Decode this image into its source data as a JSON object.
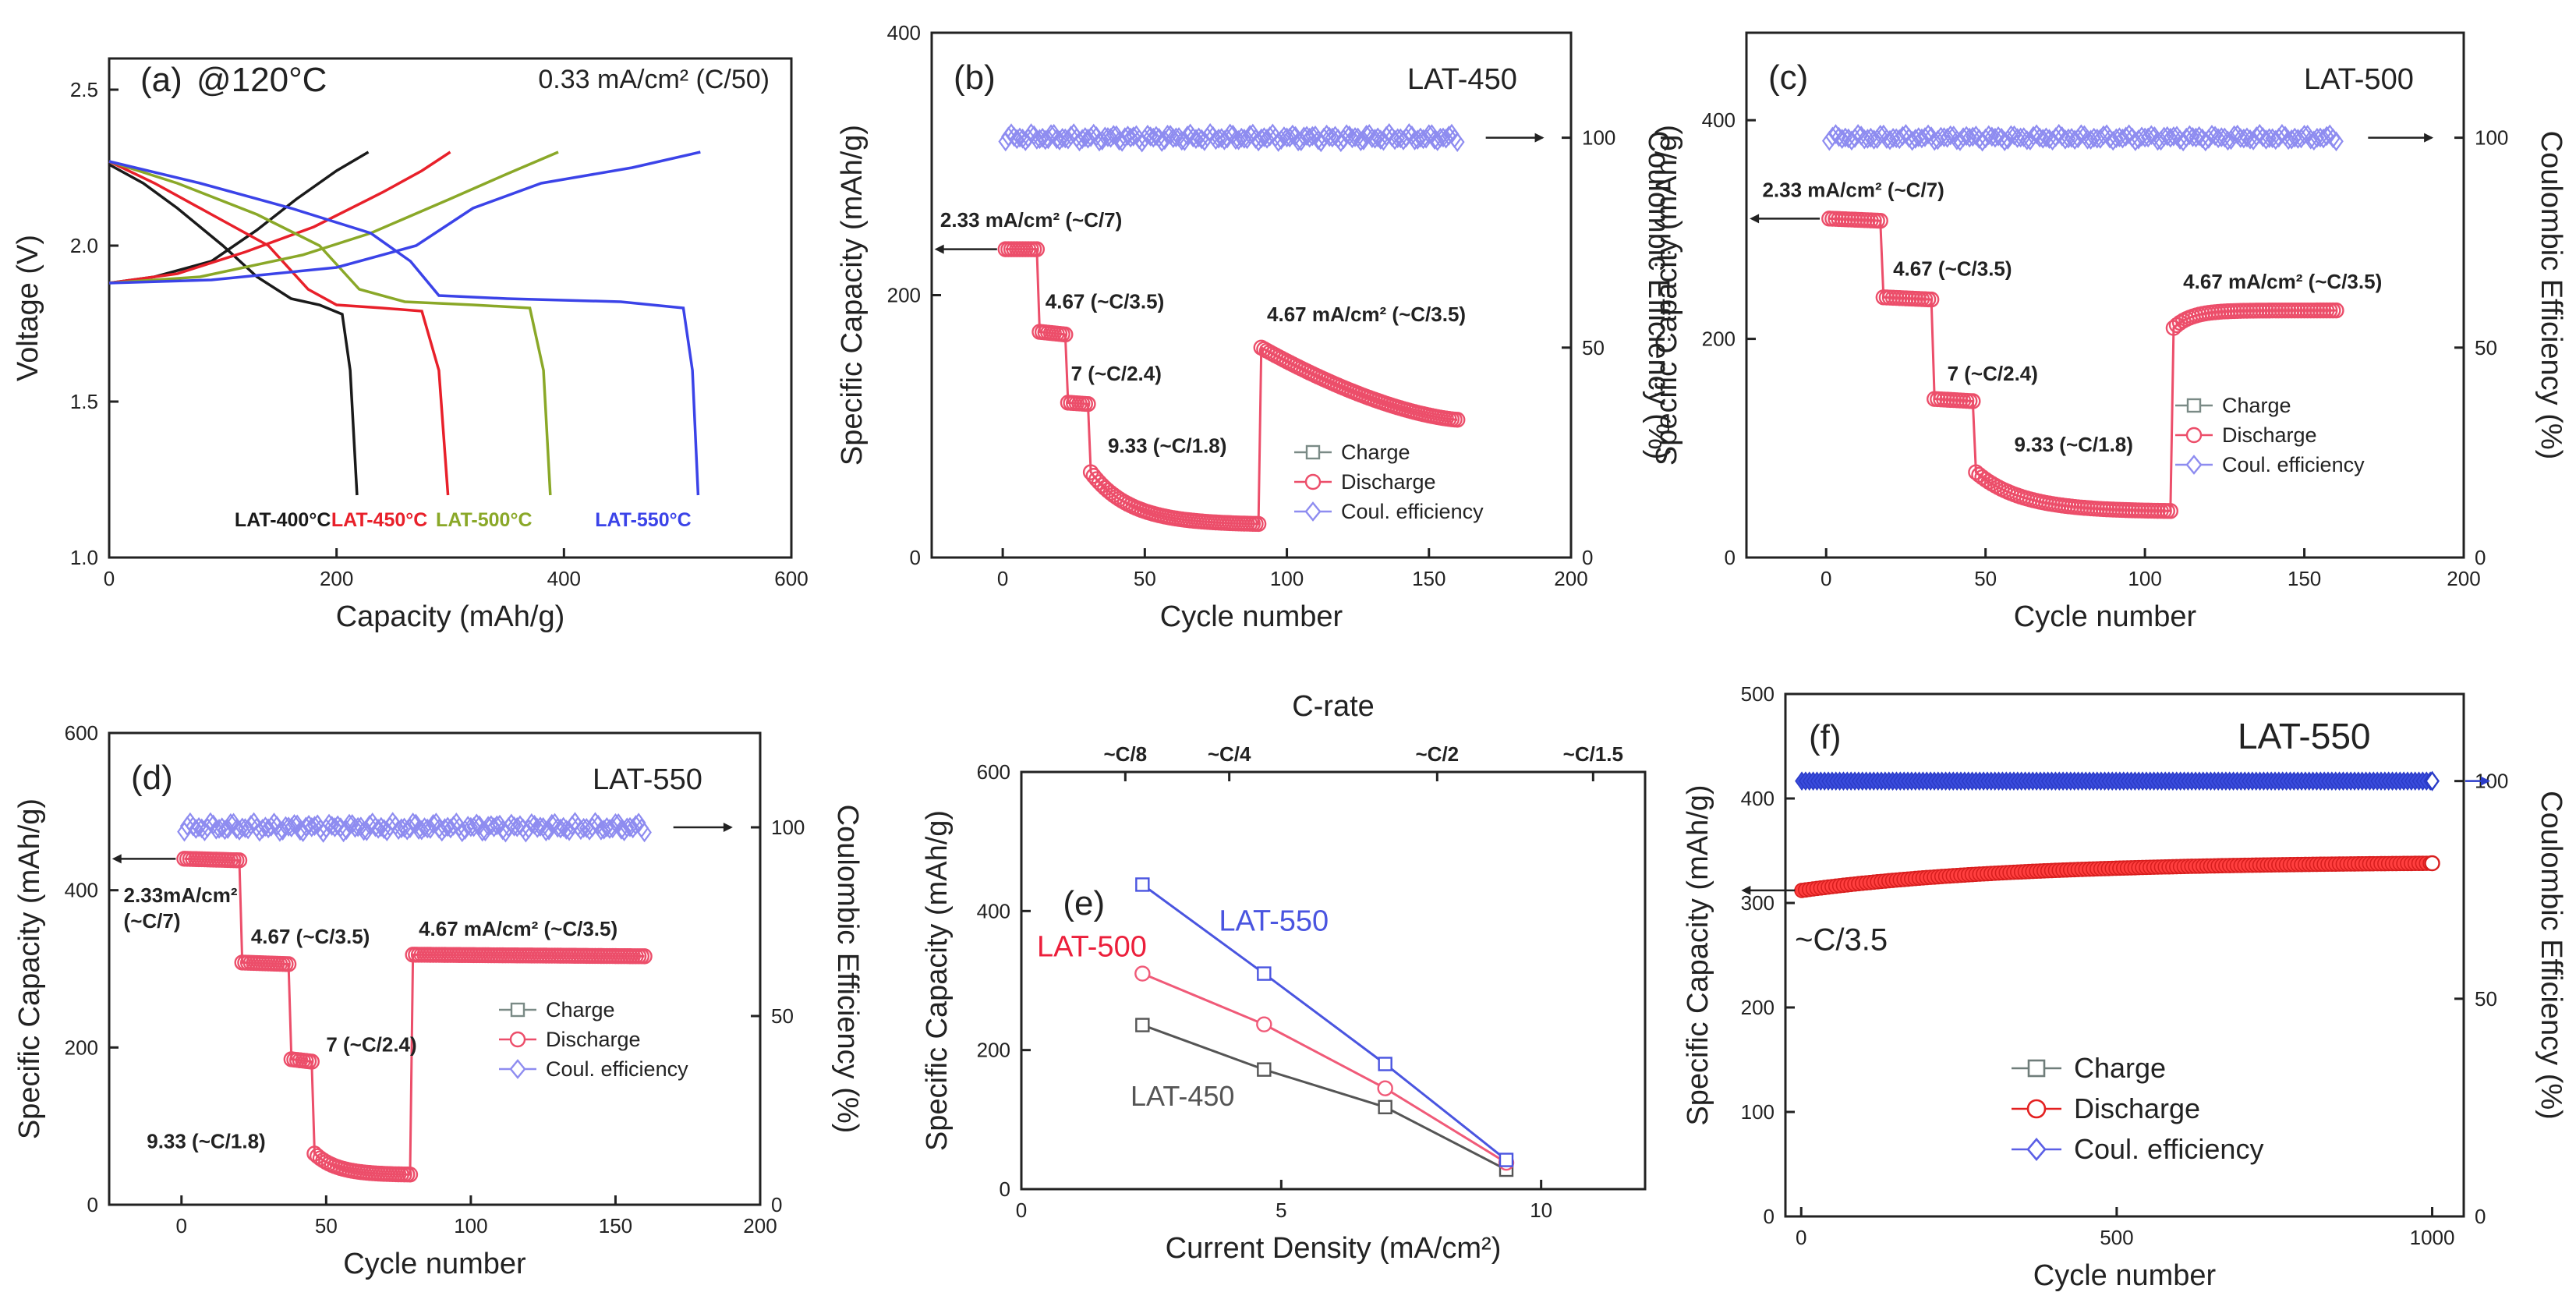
{
  "chart_data": [
    {
      "id": "a",
      "type": "line",
      "panel_label": "(a)",
      "title": "@120°C",
      "subtitle": "0.33 mA/cm² (C/50)",
      "xlabel": "Capacity (mAh/g)",
      "ylabel": "Voltage (V)",
      "xlim": [
        0,
        600
      ],
      "ylim": [
        1.0,
        2.6
      ],
      "xticks": [
        0,
        200,
        400,
        600
      ],
      "yticks": [
        1.0,
        1.5,
        2.0,
        2.5
      ],
      "series": [
        {
          "name": "LAT-400°C",
          "color": "#1a1a1a",
          "discharge": [
            [
              0,
              2.26
            ],
            [
              30,
              2.2
            ],
            [
              60,
              2.12
            ],
            [
              100,
              2.0
            ],
            [
              130,
              1.9
            ],
            [
              160,
              1.83
            ],
            [
              185,
              1.81
            ],
            [
              205,
              1.78
            ],
            [
              212,
              1.6
            ],
            [
              218,
              1.2
            ]
          ],
          "charge": [
            [
              0,
              1.88
            ],
            [
              40,
              1.9
            ],
            [
              90,
              1.95
            ],
            [
              130,
              2.05
            ],
            [
              165,
              2.15
            ],
            [
              200,
              2.24
            ],
            [
              228,
              2.3
            ]
          ]
        },
        {
          "name": "LAT-450°C",
          "color": "#e8202a",
          "discharge": [
            [
              0,
              2.27
            ],
            [
              40,
              2.2
            ],
            [
              90,
              2.1
            ],
            [
              140,
              2.0
            ],
            [
              175,
              1.86
            ],
            [
              200,
              1.81
            ],
            [
              240,
              1.8
            ],
            [
              275,
              1.79
            ],
            [
              290,
              1.6
            ],
            [
              298,
              1.2
            ]
          ],
          "charge": [
            [
              0,
              1.88
            ],
            [
              60,
              1.91
            ],
            [
              120,
              1.98
            ],
            [
              180,
              2.06
            ],
            [
              240,
              2.17
            ],
            [
              275,
              2.24
            ],
            [
              300,
              2.3
            ]
          ]
        },
        {
          "name": "LAT-500°C",
          "color": "#8aa828",
          "discharge": [
            [
              0,
              2.27
            ],
            [
              60,
              2.2
            ],
            [
              130,
              2.1
            ],
            [
              185,
              2.0
            ],
            [
              220,
              1.86
            ],
            [
              260,
              1.82
            ],
            [
              320,
              1.81
            ],
            [
              370,
              1.8
            ],
            [
              382,
              1.6
            ],
            [
              388,
              1.2
            ]
          ],
          "charge": [
            [
              0,
              1.88
            ],
            [
              80,
              1.9
            ],
            [
              170,
              1.97
            ],
            [
              230,
              2.04
            ],
            [
              300,
              2.15
            ],
            [
              350,
              2.23
            ],
            [
              395,
              2.3
            ]
          ]
        },
        {
          "name": "LAT-550°C",
          "color": "#3b43e8",
          "discharge": [
            [
              0,
              2.27
            ],
            [
              80,
              2.2
            ],
            [
              160,
              2.12
            ],
            [
              230,
              2.04
            ],
            [
              265,
              1.95
            ],
            [
              290,
              1.84
            ],
            [
              350,
              1.83
            ],
            [
              450,
              1.82
            ],
            [
              505,
              1.8
            ],
            [
              513,
              1.6
            ],
            [
              518,
              1.2
            ]
          ],
          "charge": [
            [
              0,
              1.88
            ],
            [
              90,
              1.89
            ],
            [
              200,
              1.93
            ],
            [
              270,
              2.0
            ],
            [
              320,
              2.12
            ],
            [
              380,
              2.2
            ],
            [
              460,
              2.25
            ],
            [
              520,
              2.3
            ]
          ]
        }
      ]
    },
    {
      "id": "b",
      "type": "scatter",
      "panel_label": "(b)",
      "title": "LAT-450",
      "xlabel": "Cycle number",
      "ylabel": "Specific Capacity (mAh/g)",
      "y2label": "Coulombic Efficiency (%)",
      "xlim": [
        -25,
        200
      ],
      "ylim": [
        0,
        400
      ],
      "y2lim": [
        0,
        125
      ],
      "xticks": [
        0,
        50,
        100,
        150,
        200
      ],
      "yticks": [
        0,
        200,
        400
      ],
      "y2ticks": [
        0,
        50,
        100
      ],
      "segments": [
        {
          "from": 1,
          "to": 12,
          "start": 235,
          "end": 235
        },
        {
          "from": 13,
          "to": 22,
          "start": 172,
          "end": 170
        },
        {
          "from": 23,
          "to": 30,
          "start": 118,
          "end": 117
        },
        {
          "from": 31,
          "to": 90,
          "start": 65,
          "end": 25,
          "decay": true
        },
        {
          "from": 91,
          "to": 160,
          "start": 160,
          "end": 105,
          "gradual": true
        }
      ],
      "ce_value": 100,
      "annotations": [
        "2.33 mA/cm² (~C/7)",
        "4.67 (~C/3.5)",
        "7 (~C/2.4)",
        "9.33 (~C/1.8)",
        "4.67 mA/cm² (~C/3.5)"
      ],
      "legend": [
        "Charge",
        "Discharge",
        "Coul. efficiency"
      ]
    },
    {
      "id": "c",
      "type": "scatter",
      "panel_label": "(c)",
      "title": "LAT-500",
      "xlabel": "Cycle number",
      "ylabel": "Specific Capacity (mAh/g)",
      "y2label": "Coulombic Efficiency (%)",
      "xlim": [
        -25,
        200
      ],
      "ylim": [
        0,
        480
      ],
      "y2lim": [
        0,
        125
      ],
      "xticks": [
        0,
        50,
        100,
        150,
        200
      ],
      "yticks": [
        0,
        200,
        400
      ],
      "y2ticks": [
        0,
        50,
        100
      ],
      "segments": [
        {
          "from": 1,
          "to": 17,
          "start": 310,
          "end": 308
        },
        {
          "from": 18,
          "to": 33,
          "start": 238,
          "end": 236
        },
        {
          "from": 34,
          "to": 46,
          "start": 145,
          "end": 143
        },
        {
          "from": 47,
          "to": 108,
          "start": 78,
          "end": 42,
          "decay": true
        },
        {
          "from": 109,
          "to": 160,
          "start": 210,
          "end": 226,
          "rise": true
        }
      ],
      "ce_value": 100,
      "annotations": [
        "2.33 mA/cm² (~C/7)",
        "4.67 (~C/3.5)",
        "7 (~C/2.4)",
        "9.33 (~C/1.8)",
        "4.67 mA/cm² (~C/3.5)"
      ],
      "legend": [
        "Charge",
        "Discharge",
        "Coul. efficiency"
      ]
    },
    {
      "id": "d",
      "type": "scatter",
      "panel_label": "(d)",
      "title": "LAT-550",
      "xlabel": "Cycle number",
      "ylabel": "Specific Capacity (mAh/g)",
      "y2label": "Coulombic Efficiency (%)",
      "xlim": [
        -25,
        200
      ],
      "ylim": [
        0,
        600
      ],
      "y2lim": [
        0,
        125
      ],
      "xticks": [
        0,
        50,
        100,
        150,
        200
      ],
      "yticks": [
        0,
        200,
        400,
        600
      ],
      "y2ticks": [
        0,
        50,
        100
      ],
      "segments": [
        {
          "from": 1,
          "to": 20,
          "start": 440,
          "end": 438
        },
        {
          "from": 21,
          "to": 37,
          "start": 308,
          "end": 306
        },
        {
          "from": 38,
          "to": 45,
          "start": 185,
          "end": 182
        },
        {
          "from": 46,
          "to": 79,
          "start": 65,
          "end": 38,
          "decay": true
        },
        {
          "from": 80,
          "to": 160,
          "start": 318,
          "end": 316
        }
      ],
      "ce_value": 100,
      "annotations": [
        "2.33mA/cm²",
        "(~C/7)",
        "4.67 (~C/3.5)",
        "7 (~C/2.4)",
        "9.33 (~C/1.8)",
        "4.67 mA/cm² (~C/3.5)"
      ],
      "legend": [
        "Charge",
        "Discharge",
        "Coul. efficiency"
      ]
    },
    {
      "id": "e",
      "type": "line",
      "panel_label": "(e)",
      "title": "C-rate",
      "xlabel": "Current Density (mA/cm²)",
      "ylabel": "Specific Capacity (mAh/g)",
      "xlim": [
        0,
        12
      ],
      "ylim": [
        0,
        600
      ],
      "xticks": [
        0,
        5,
        10
      ],
      "yticks": [
        0,
        200,
        400,
        600
      ],
      "top_ticks": [
        {
          "x": 2.0,
          "label": "~C/8"
        },
        {
          "x": 4.0,
          "label": "~C/4"
        },
        {
          "x": 8.0,
          "label": "~C/2"
        },
        {
          "x": 11.0,
          "label": "~C/1.5"
        }
      ],
      "series": [
        {
          "name": "LAT-450",
          "color": "#555555",
          "x": [
            2.33,
            4.67,
            7,
            9.33
          ],
          "y": [
            236,
            172,
            118,
            28
          ]
        },
        {
          "name": "LAT-500",
          "color": "#f05a78",
          "x": [
            2.33,
            4.67,
            7,
            9.33
          ],
          "y": [
            310,
            237,
            145,
            38
          ]
        },
        {
          "name": "LAT-550",
          "color": "#4a55e0",
          "x": [
            2.33,
            4.67,
            7,
            9.33
          ],
          "y": [
            438,
            310,
            180,
            42
          ]
        }
      ]
    },
    {
      "id": "f",
      "type": "scatter",
      "panel_label": "(f)",
      "title": "LAT-550",
      "xlabel": "Cycle number",
      "ylabel": "Specific Capacity (mAh/g)",
      "y2label": "Coulombic Efficiency (%)",
      "xlim": [
        -25,
        1050
      ],
      "ylim": [
        0,
        500
      ],
      "y2lim": [
        0,
        120
      ],
      "xticks": [
        0,
        500,
        1000
      ],
      "yticks": [
        0,
        100,
        200,
        300,
        400,
        500
      ],
      "y2ticks": [
        0,
        50,
        100
      ],
      "discharge_start": 312,
      "discharge_end": 338,
      "ce_value": 100,
      "annotations": [
        "~C/3.5"
      ],
      "legend": [
        "Charge",
        "Discharge",
        "Coul. efficiency"
      ]
    }
  ]
}
